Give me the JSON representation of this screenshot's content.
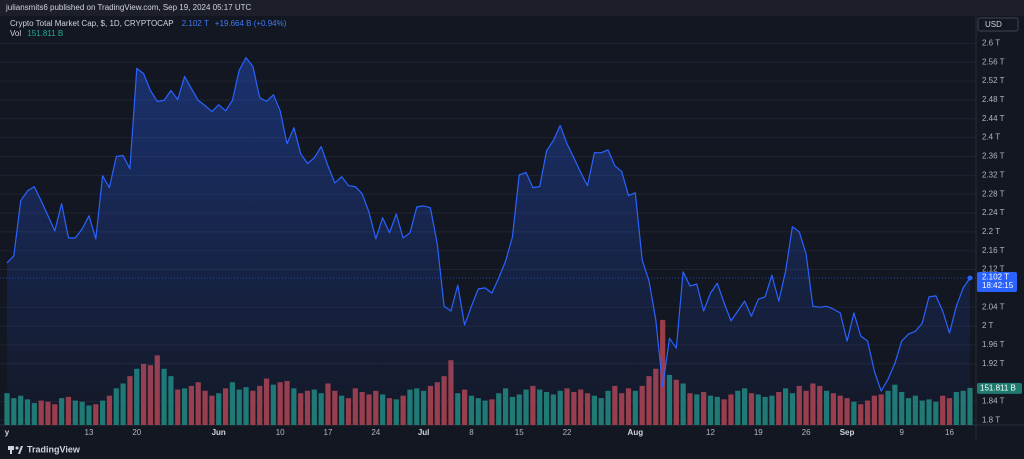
{
  "header": {
    "publisher": "juliansmits6 published on TradingView.com, Sep 19, 2024 05:17 UTC",
    "brand": "TradingView"
  },
  "chart_data": {
    "type": "line",
    "title": "Crypto Total Market Cap, $, 1D, CRYPTOCAP",
    "last_label": "2.102 T",
    "change_label": "+19.664 B (+0.94%)",
    "countdown": "18:42:15",
    "currency": "USD",
    "categories": [
      "y",
      null,
      null,
      null,
      null,
      null,
      null,
      null,
      null,
      null,
      null,
      null,
      "13",
      null,
      null,
      null,
      null,
      null,
      null,
      "20",
      null,
      null,
      null,
      null,
      null,
      null,
      null,
      null,
      null,
      null,
      null,
      "Jun",
      null,
      null,
      null,
      null,
      null,
      null,
      null,
      null,
      "10",
      null,
      null,
      null,
      null,
      null,
      null,
      "17",
      null,
      null,
      null,
      null,
      null,
      null,
      "24",
      null,
      null,
      null,
      null,
      null,
      null,
      "Jul",
      null,
      null,
      null,
      null,
      null,
      null,
      "8",
      null,
      null,
      null,
      null,
      null,
      null,
      "15",
      null,
      null,
      null,
      null,
      null,
      null,
      "22",
      null,
      null,
      null,
      null,
      null,
      null,
      null,
      null,
      null,
      "Aug",
      null,
      null,
      null,
      null,
      null,
      null,
      null,
      null,
      null,
      null,
      "12",
      null,
      null,
      null,
      null,
      null,
      null,
      "19",
      null,
      null,
      null,
      null,
      null,
      null,
      "26",
      null,
      null,
      null,
      null,
      null,
      "Sep",
      null,
      null,
      null,
      null,
      null,
      null,
      null,
      "9",
      null,
      null,
      null,
      null,
      null,
      null,
      "16",
      null,
      null,
      null
    ],
    "series": [
      {
        "color": "#2962ff",
        "values": [
          2.134,
          2.149,
          2.266,
          2.287,
          2.296,
          2.266,
          2.234,
          2.202,
          2.26,
          2.187,
          2.187,
          2.206,
          2.234,
          2.185,
          2.319,
          2.294,
          2.36,
          2.362,
          2.334,
          2.547,
          2.536,
          2.5,
          2.477,
          2.479,
          2.5,
          2.481,
          2.53,
          2.504,
          2.479,
          2.468,
          2.455,
          2.47,
          2.457,
          2.479,
          2.543,
          2.57,
          2.551,
          2.485,
          2.477,
          2.491,
          2.457,
          2.387,
          2.421,
          2.366,
          2.345,
          2.357,
          2.381,
          2.34,
          2.304,
          2.317,
          2.298,
          2.296,
          2.281,
          2.242,
          2.185,
          2.23,
          2.198,
          2.238,
          2.187,
          2.198,
          2.253,
          2.255,
          2.251,
          2.174,
          2.042,
          2.032,
          2.087,
          2.002,
          2.042,
          2.079,
          2.081,
          2.07,
          2.102,
          2.138,
          2.189,
          2.321,
          2.326,
          2.294,
          2.296,
          2.372,
          2.394,
          2.426,
          2.387,
          2.357,
          2.326,
          2.298,
          2.368,
          2.368,
          2.374,
          2.34,
          2.328,
          2.277,
          2.283,
          2.14,
          2.096,
          2.013,
          1.872,
          1.974,
          1.953,
          2.115,
          2.085,
          2.089,
          2.032,
          2.07,
          2.091,
          2.049,
          2.011,
          2.032,
          2.053,
          2.021,
          2.057,
          2.062,
          2.108,
          2.053,
          2.117,
          2.211,
          2.2,
          2.153,
          2.042,
          2.04,
          2.042,
          2.036,
          2.028,
          1.968,
          2.028,
          1.979,
          1.968,
          1.904,
          1.862,
          1.887,
          1.921,
          1.968,
          1.983,
          1.989,
          2.006,
          2.062,
          2.064,
          2.032,
          1.985,
          2.042,
          2.081,
          2.102
        ]
      },
      {
        "name": "Vol",
        "type": "bar",
        "axis": "y2",
        "colors": {
          "up": "#1f7a70",
          "down": "#9c3d47"
        },
        "last_label": "151.811 B",
        "values": [
          130,
          110,
          120,
          105,
          90,
          100,
          95,
          85,
          110,
          115,
          100,
          95,
          80,
          85,
          100,
          120,
          150,
          170,
          200,
          230,
          250,
          245,
          285,
          230,
          200,
          145,
          150,
          160,
          175,
          140,
          120,
          130,
          150,
          175,
          145,
          155,
          140,
          160,
          190,
          165,
          175,
          180,
          150,
          130,
          140,
          145,
          130,
          170,
          140,
          120,
          110,
          150,
          135,
          125,
          140,
          125,
          110,
          105,
          120,
          145,
          150,
          140,
          160,
          175,
          200,
          265,
          130,
          145,
          120,
          110,
          100,
          105,
          130,
          150,
          115,
          125,
          145,
          160,
          145,
          135,
          125,
          140,
          150,
          135,
          145,
          130,
          120,
          110,
          140,
          160,
          130,
          150,
          140,
          160,
          200,
          230,
          430,
          205,
          185,
          170,
          130,
          125,
          135,
          120,
          115,
          105,
          125,
          140,
          150,
          130,
          125,
          115,
          120,
          135,
          150,
          130,
          160,
          140,
          170,
          160,
          140,
          130,
          120,
          110,
          95,
          85,
          100,
          120,
          125,
          140,
          165,
          135,
          110,
          120,
          100,
          105,
          95,
          120,
          110,
          135,
          140,
          151.811
        ]
      }
    ],
    "ylim": [
      1.79,
      2.62
    ],
    "yticks": [
      {
        "value": 2.6,
        "label": "2.6 T"
      },
      {
        "value": 2.56,
        "label": "2.56 T"
      },
      {
        "value": 2.52,
        "label": "2.52 T"
      },
      {
        "value": 2.48,
        "label": "2.48 T"
      },
      {
        "value": 2.44,
        "label": "2.44 T"
      },
      {
        "value": 2.4,
        "label": "2.4 T"
      },
      {
        "value": 2.36,
        "label": "2.36 T"
      },
      {
        "value": 2.32,
        "label": "2.32 T"
      },
      {
        "value": 2.28,
        "label": "2.28 T"
      },
      {
        "value": 2.24,
        "label": "2.24 T"
      },
      {
        "value": 2.2,
        "label": "2.2 T"
      },
      {
        "value": 2.16,
        "label": "2.16 T"
      },
      {
        "value": 2.12,
        "label": "2.12 T"
      },
      {
        "value": 2.04,
        "label": "2.04 T"
      },
      {
        "value": 2,
        "label": "2 T"
      },
      {
        "value": 1.96,
        "label": "1.96 T"
      },
      {
        "value": 1.92,
        "label": "1.92 T"
      },
      {
        "value": 1.84,
        "label": "1.84 T"
      },
      {
        "value": 1.8,
        "label": "1.8 T"
      }
    ],
    "y2lim": [
      0,
      1600
    ],
    "grid": true
  }
}
